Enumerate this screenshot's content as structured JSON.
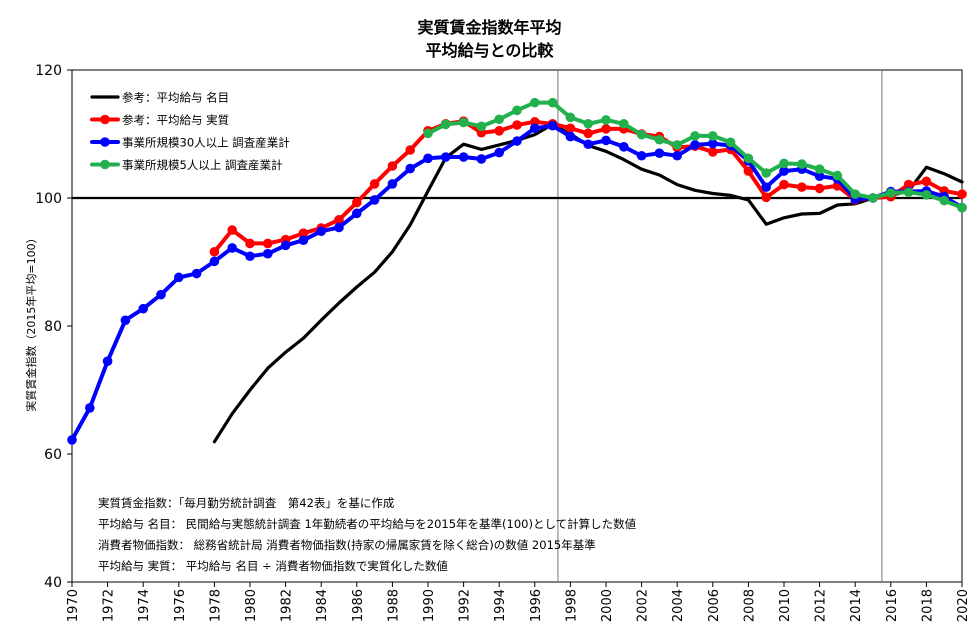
{
  "chart_data": {
    "type": "line",
    "title": "実質賃金指数年平均",
    "subtitle": "平均給与との比較",
    "ylabel": "実質賃金指数（2015年平均=100）",
    "xlabel": "",
    "xlim": [
      1970,
      2020
    ],
    "ylim": [
      40,
      120
    ],
    "yticks": [
      40,
      60,
      80,
      100,
      120
    ],
    "xticks": [
      1970,
      1972,
      1974,
      1976,
      1978,
      1980,
      1982,
      1984,
      1986,
      1988,
      1990,
      1992,
      1994,
      1996,
      1998,
      2000,
      2002,
      2004,
      2006,
      2008,
      2010,
      2012,
      2014,
      2016,
      2018,
      2020
    ],
    "reference_line": 100,
    "vertical_lines": [
      1997.3,
      2015.5
    ],
    "grid": false,
    "legend_position": "top-left",
    "series": [
      {
        "name": "参考：平均給与 名目",
        "color": "#000000",
        "marker": false,
        "x": [
          1978,
          1979,
          1980,
          1981,
          1982,
          1983,
          1984,
          1985,
          1986,
          1987,
          1988,
          1989,
          1990,
          1991,
          1992,
          1993,
          1994,
          1995,
          1996,
          1997,
          1998,
          1999,
          2000,
          2001,
          2002,
          2003,
          2004,
          2005,
          2006,
          2007,
          2008,
          2009,
          2010,
          2011,
          2012,
          2013,
          2014,
          2015,
          2016,
          2017,
          2018,
          2019,
          2020
        ],
        "values": [
          61.9,
          66.3,
          70.0,
          73.4,
          75.9,
          78.1,
          80.9,
          83.6,
          86.1,
          88.4,
          91.6,
          95.8,
          101.1,
          106.3,
          108.4,
          107.6,
          108.3,
          109.0,
          109.9,
          111.5,
          110.0,
          108.2,
          107.3,
          106.0,
          104.5,
          103.6,
          102.1,
          101.2,
          100.7,
          100.4,
          99.7,
          95.9,
          96.9,
          97.5,
          97.6,
          98.9,
          99.1,
          100.0,
          100.4,
          101.1,
          104.8,
          103.8,
          102.5
        ]
      },
      {
        "name": "参考：平均給与 実質",
        "color": "#ff0000",
        "marker": true,
        "x": [
          1978,
          1979,
          1980,
          1981,
          1982,
          1983,
          1984,
          1985,
          1986,
          1987,
          1988,
          1989,
          1990,
          1991,
          1992,
          1993,
          1994,
          1995,
          1996,
          1997,
          1998,
          1999,
          2000,
          2001,
          2002,
          2003,
          2004,
          2005,
          2006,
          2007,
          2008,
          2009,
          2010,
          2011,
          2012,
          2013,
          2014,
          2015,
          2016,
          2017,
          2018,
          2019,
          2020
        ],
        "values": [
          91.6,
          95.0,
          92.9,
          92.9,
          93.5,
          94.5,
          95.3,
          96.6,
          99.3,
          102.2,
          105.0,
          107.5,
          110.5,
          111.6,
          112.0,
          110.2,
          110.5,
          111.4,
          111.9,
          111.6,
          110.9,
          110.1,
          110.8,
          110.8,
          110.0,
          109.6,
          107.9,
          108.1,
          107.2,
          107.6,
          104.2,
          100.1,
          102.1,
          101.7,
          101.5,
          101.9,
          99.7,
          100.0,
          100.2,
          102.1,
          102.6,
          101.1,
          100.6
        ]
      },
      {
        "name": "事業所規模30人以上 調査産業計",
        "color": "#0000ff",
        "marker": true,
        "x": [
          1970,
          1971,
          1972,
          1973,
          1974,
          1975,
          1976,
          1977,
          1978,
          1979,
          1980,
          1981,
          1982,
          1983,
          1984,
          1985,
          1986,
          1987,
          1988,
          1989,
          1990,
          1991,
          1992,
          1993,
          1994,
          1995,
          1996,
          1997,
          1998,
          1999,
          2000,
          2001,
          2002,
          2003,
          2004,
          2005,
          2006,
          2007,
          2008,
          2009,
          2010,
          2011,
          2012,
          2013,
          2014,
          2015,
          2016,
          2017,
          2018,
          2019,
          2020
        ],
        "values": [
          62.2,
          67.2,
          74.5,
          80.9,
          82.7,
          84.9,
          87.6,
          88.2,
          90.1,
          92.2,
          90.9,
          91.3,
          92.6,
          93.4,
          94.8,
          95.4,
          97.6,
          99.7,
          102.2,
          104.6,
          106.2,
          106.4,
          106.4,
          106.1,
          107.1,
          108.9,
          110.9,
          111.3,
          109.6,
          108.4,
          109.0,
          108.0,
          106.6,
          107.0,
          106.6,
          108.3,
          108.5,
          108.2,
          105.8,
          101.7,
          104.2,
          104.5,
          103.4,
          103.0,
          99.8,
          100.0,
          101.0,
          101.0,
          101.1,
          100.2,
          98.5
        ]
      },
      {
        "name": "事業所規模5人以上 調査産業計",
        "color": "#22b14c",
        "marker": true,
        "x": [
          1990,
          1991,
          1992,
          1993,
          1994,
          1995,
          1996,
          1997,
          1998,
          1999,
          2000,
          2001,
          2002,
          2003,
          2004,
          2005,
          2006,
          2007,
          2008,
          2009,
          2010,
          2011,
          2012,
          2013,
          2014,
          2015,
          2016,
          2017,
          2018,
          2019,
          2020
        ],
        "values": [
          110.1,
          111.5,
          111.8,
          111.2,
          112.3,
          113.7,
          114.9,
          114.9,
          112.6,
          111.6,
          112.2,
          111.6,
          109.9,
          109.1,
          108.3,
          109.7,
          109.7,
          108.7,
          106.2,
          103.9,
          105.4,
          105.3,
          104.5,
          103.5,
          100.6,
          100.0,
          100.8,
          100.9,
          100.5,
          99.6,
          98.5
        ]
      }
    ]
  },
  "notes": [
    "実質賃金指数：「毎月勤労統計調査　第42表」を基に作成",
    "平均給与 名目：  民間給与実態統計調査  1年勤続者の平均給与を2015年を基準(100)として計算した数値",
    "消費者物価指数：  総務省統計局  消費者物価指数(持家の帰属家賃を除く総合)の数値  2015年基準",
    "平均給与 実質：  平均給与 名目 ÷ 消費者物価指数で実質化した数値"
  ]
}
